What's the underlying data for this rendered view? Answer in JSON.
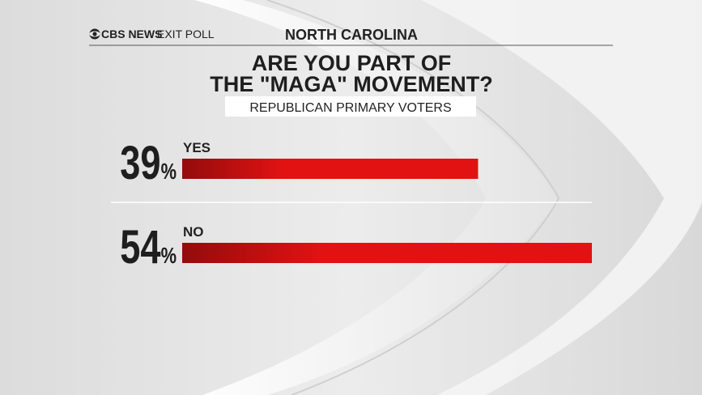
{
  "header": {
    "brand": "CBS NEWS",
    "source": "EXIT POLL",
    "state": "NORTH CAROLINA"
  },
  "chart_data": {
    "type": "bar",
    "orientation": "horizontal",
    "title_lines": [
      "ARE YOU PART OF",
      "THE \"MAGA\" MOVEMENT?"
    ],
    "subtitle": "REPUBLICAN PRIMARY VOTERS",
    "categories": [
      "YES",
      "NO"
    ],
    "values": [
      39,
      54
    ],
    "value_labels": [
      "39%",
      "54%"
    ],
    "color": "#e31212"
  }
}
